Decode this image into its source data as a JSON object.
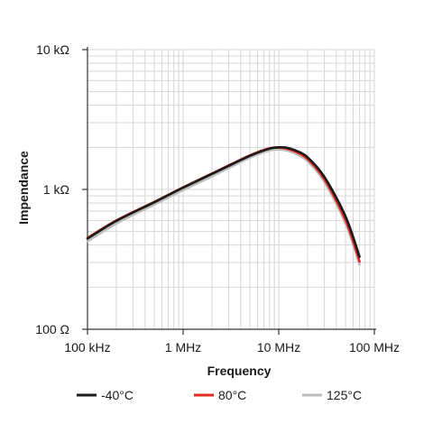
{
  "chart_data": {
    "type": "line",
    "title": "",
    "xlabel": "Frequency",
    "ylabel": "Impendance",
    "x_scale": "log",
    "y_scale": "log",
    "xlim": [
      100000,
      100000000
    ],
    "ylim": [
      100,
      10000
    ],
    "x_ticks": [
      {
        "value": 100000,
        "label": "100 kHz"
      },
      {
        "value": 1000000,
        "label": "1 MHz"
      },
      {
        "value": 10000000,
        "label": "10 MHz"
      },
      {
        "value": 100000000,
        "label": "100 MHz"
      }
    ],
    "y_ticks": [
      {
        "value": 10000,
        "label": "10 kΩ"
      },
      {
        "value": 1000,
        "label": "1 kΩ"
      },
      {
        "value": 100,
        "label": "100 Ω"
      }
    ],
    "grid": true,
    "legend_position": "bottom",
    "series": [
      {
        "name": "-40°C",
        "color": "#1a1a1a",
        "x": [
          100000,
          200000,
          500000,
          1000000,
          2000000,
          5000000,
          8000000,
          10000000,
          12000000,
          15000000,
          20000000,
          30000000,
          50000000,
          70000000
        ],
        "y": [
          445,
          595,
          810,
          1030,
          1290,
          1740,
          1960,
          2000,
          1990,
          1900,
          1700,
          1230,
          640,
          330
        ]
      },
      {
        "name": "80°C",
        "color": "#e02a22",
        "x": [
          100000,
          200000,
          500000,
          1000000,
          2000000,
          5000000,
          8000000,
          10000000,
          12000000,
          15000000,
          20000000,
          30000000,
          50000000,
          70000000
        ],
        "y": [
          450,
          600,
          815,
          1035,
          1300,
          1755,
          1970,
          1990,
          1960,
          1860,
          1650,
          1180,
          600,
          305
        ]
      },
      {
        "name": "125°C",
        "color": "#bdbdbd",
        "x": [
          100000,
          200000,
          500000,
          1000000,
          2000000,
          5000000,
          8000000,
          10000000,
          12000000,
          15000000,
          20000000,
          30000000,
          50000000,
          70000000
        ],
        "y": [
          425,
          570,
          780,
          990,
          1240,
          1690,
          1900,
          1930,
          1900,
          1800,
          1590,
          1130,
          570,
          290
        ]
      }
    ]
  }
}
